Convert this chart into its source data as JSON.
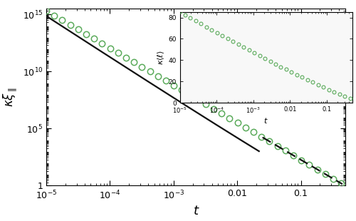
{
  "xlabel": "t",
  "ylabel": "$\\kappa\\xi_\\parallel$",
  "inset_ylabel": "$\\kappa\\langle\\ell\\rangle$",
  "inset_xlabel": "t",
  "xlim": [
    1e-05,
    0.5
  ],
  "ylim": [
    1,
    3000000000000000.0
  ],
  "circle_color": "#5aaa5a",
  "line_color_solid": "#111111",
  "line_color_dashed": "#111111",
  "background_color": "#ffffff",
  "inset_background": "#f8f8f8"
}
